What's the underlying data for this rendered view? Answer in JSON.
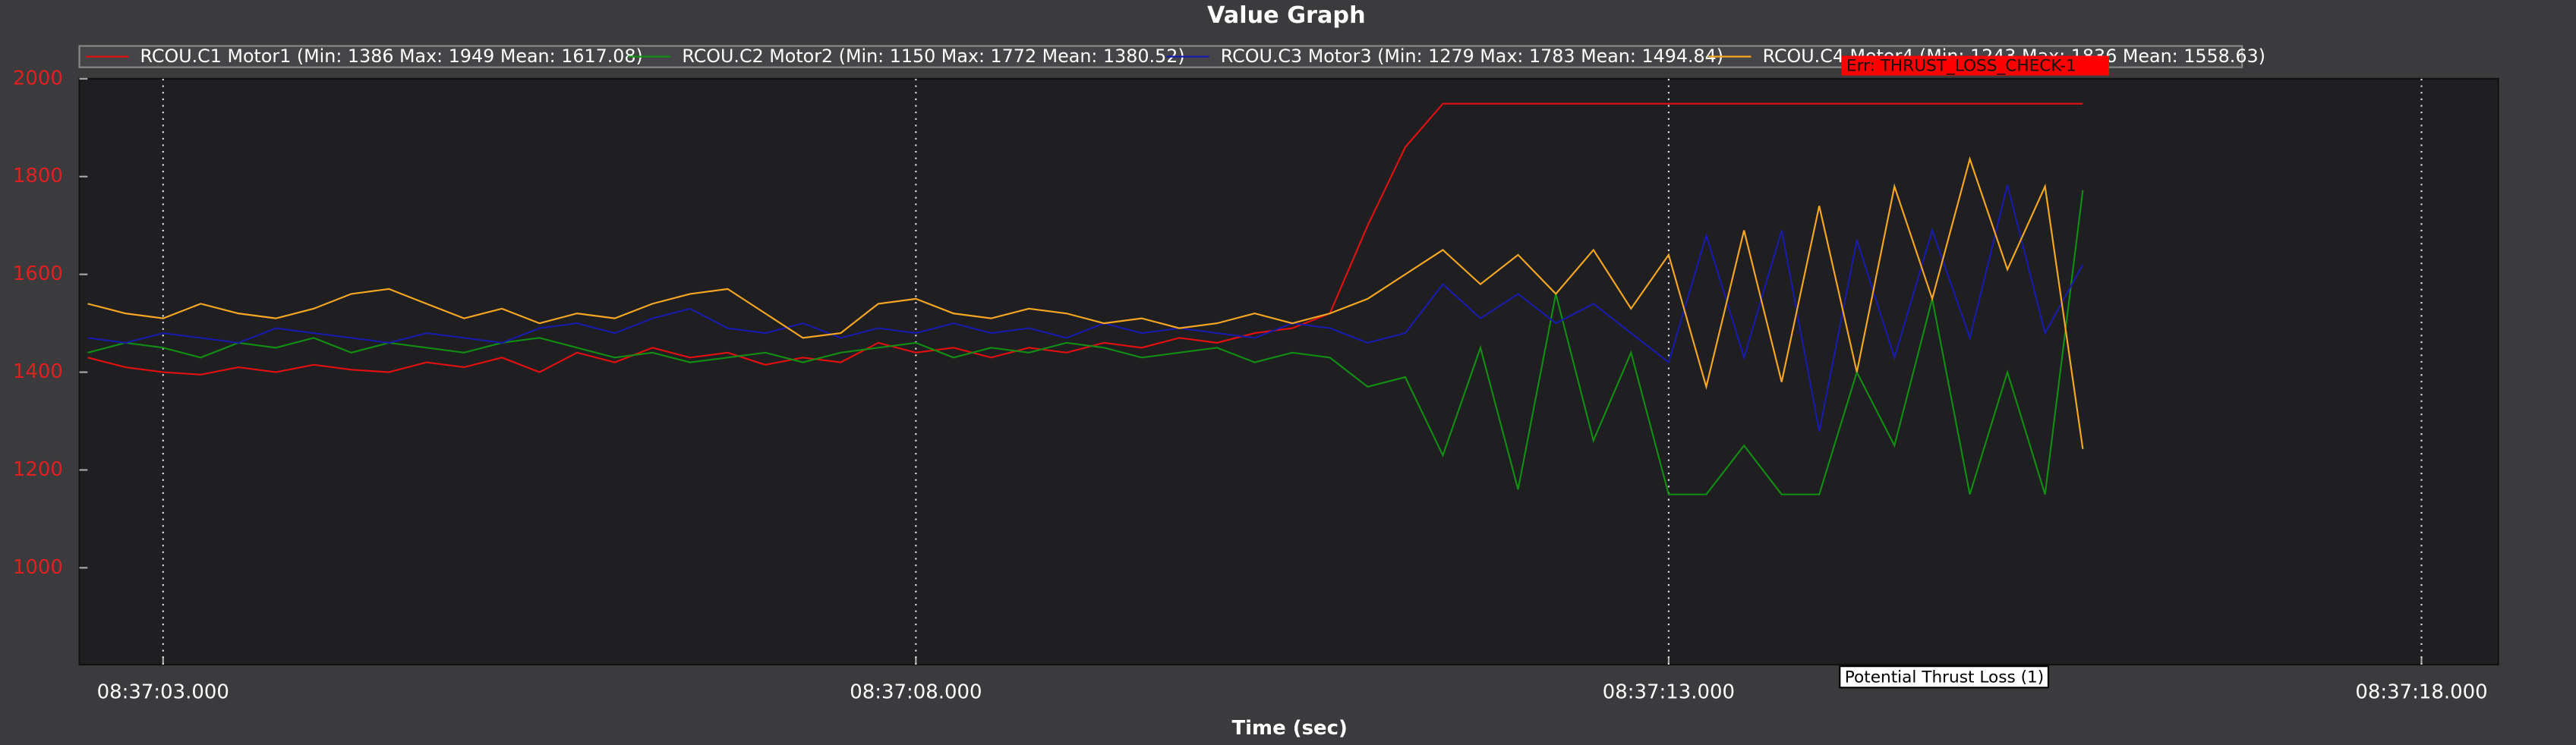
{
  "chart_data": {
    "type": "line",
    "title": "Value Graph",
    "x_label": "Time (sec)",
    "x": [
      2.5,
      2.75,
      3,
      3.25,
      3.5,
      3.75,
      4,
      4.25,
      4.5,
      4.75,
      5,
      5.25,
      5.5,
      5.75,
      6,
      6.25,
      6.5,
      6.75,
      7,
      7.25,
      7.5,
      7.75,
      8,
      8.25,
      8.5,
      8.75,
      9,
      9.25,
      9.5,
      9.75,
      10,
      10.25,
      10.5,
      10.75,
      11,
      11.25,
      11.5,
      11.75,
      12,
      12.25,
      12.5,
      12.75,
      13,
      13.25,
      13.5,
      13.75,
      14,
      14.25,
      14.5,
      14.75,
      15,
      15.25,
      15.5,
      15.75
    ],
    "series": [
      {
        "name": "RCOU.C1 Motor1 (Min: 1386 Max: 1949 Mean: 1617.08)",
        "color": "#e01010",
        "values": [
          1430,
          1410,
          1400,
          1395,
          1410,
          1400,
          1415,
          1405,
          1400,
          1420,
          1410,
          1430,
          1400,
          1440,
          1420,
          1450,
          1430,
          1440,
          1415,
          1430,
          1420,
          1460,
          1440,
          1450,
          1430,
          1450,
          1440,
          1460,
          1450,
          1470,
          1460,
          1480,
          1490,
          1520,
          1700,
          1860,
          1949,
          1949,
          1949,
          1949,
          1949,
          1949,
          1949,
          1949,
          1949,
          1949,
          1949,
          1949,
          1949,
          1949,
          1949,
          1949,
          1949,
          1949
        ]
      },
      {
        "name": "RCOU.C2 Motor2 (Min: 1150 Max: 1772 Mean: 1380.52)",
        "color": "#128c12",
        "values": [
          1440,
          1460,
          1450,
          1430,
          1460,
          1450,
          1470,
          1440,
          1460,
          1450,
          1440,
          1460,
          1470,
          1450,
          1430,
          1440,
          1420,
          1430,
          1440,
          1420,
          1440,
          1450,
          1460,
          1430,
          1450,
          1440,
          1460,
          1450,
          1430,
          1440,
          1450,
          1420,
          1440,
          1430,
          1370,
          1390,
          1230,
          1450,
          1160,
          1560,
          1260,
          1440,
          1150,
          1150,
          1250,
          1150,
          1150,
          1400,
          1250,
          1550,
          1150,
          1400,
          1150,
          1772
        ]
      },
      {
        "name": "RCOU.C3 Motor3 (Min: 1279 Max: 1783 Mean: 1494.84)",
        "color": "#1a1aa8",
        "values": [
          1470,
          1460,
          1480,
          1470,
          1460,
          1490,
          1480,
          1470,
          1460,
          1480,
          1470,
          1460,
          1490,
          1500,
          1480,
          1510,
          1530,
          1490,
          1480,
          1500,
          1470,
          1490,
          1480,
          1500,
          1480,
          1490,
          1470,
          1500,
          1480,
          1490,
          1480,
          1470,
          1500,
          1490,
          1460,
          1480,
          1580,
          1510,
          1560,
          1500,
          1540,
          1480,
          1420,
          1680,
          1430,
          1690,
          1279,
          1670,
          1430,
          1690,
          1470,
          1783,
          1480,
          1620
        ]
      },
      {
        "name": "RCOU.C4 Motor4 (Min: 1243 Max: 1836 Mean: 1558.63)",
        "color": "#f5a623",
        "values": [
          1540,
          1520,
          1510,
          1540,
          1520,
          1510,
          1530,
          1560,
          1570,
          1540,
          1510,
          1530,
          1500,
          1520,
          1510,
          1540,
          1560,
          1570,
          1520,
          1470,
          1480,
          1540,
          1550,
          1520,
          1510,
          1530,
          1520,
          1500,
          1510,
          1490,
          1500,
          1520,
          1500,
          1520,
          1550,
          1600,
          1650,
          1580,
          1640,
          1560,
          1650,
          1530,
          1640,
          1370,
          1690,
          1380,
          1740,
          1400,
          1780,
          1550,
          1836,
          1610,
          1780,
          1243
        ]
      }
    ],
    "xlim": [
      2.444,
      18.51
    ],
    "xticks": [
      {
        "value": 3,
        "label": "08:37:03.000"
      },
      {
        "value": 8,
        "label": "08:37:08.000"
      },
      {
        "value": 13,
        "label": "08:37:13.000"
      },
      {
        "value": 18,
        "label": "08:37:18.000"
      }
    ],
    "ylim": [
      802,
      2000
    ],
    "yticks": [
      1000,
      1200,
      1400,
      1600,
      1800,
      2000
    ],
    "grid": true,
    "annotations": [
      "Err: THRUST_LOSS_CHECK-1",
      "Potential Thrust Loss (1)"
    ]
  }
}
